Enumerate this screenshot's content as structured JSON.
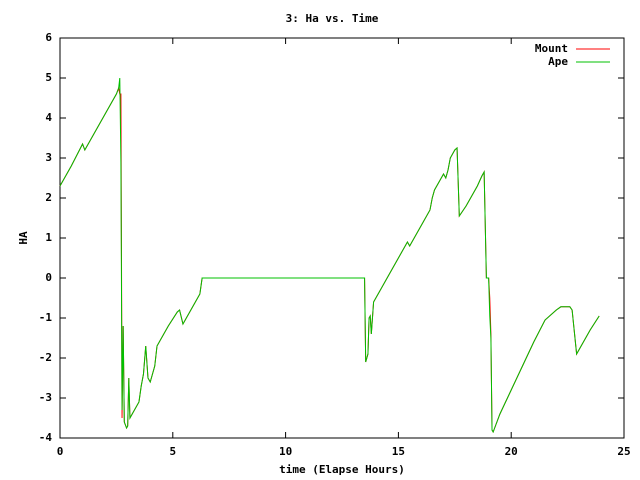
{
  "chart_data": {
    "type": "line",
    "title": "3: Ha vs. Time",
    "xlabel": "time (Elapse Hours)",
    "ylabel": "HA",
    "x": [
      0,
      0.5,
      1.0,
      1.1,
      1.5,
      2.0,
      2.5,
      2.6,
      2.65,
      2.7,
      2.75,
      2.8,
      2.85,
      2.95,
      3.0,
      3.05,
      3.1,
      3.3,
      3.5,
      3.6,
      3.7,
      3.8,
      3.9,
      4.0,
      4.2,
      4.3,
      4.5,
      4.8,
      5.2,
      5.3,
      5.45,
      5.6,
      6.0,
      6.2,
      6.3,
      13.5,
      13.55,
      13.65,
      13.7,
      13.75,
      13.8,
      13.9,
      14.1,
      14.5,
      15.0,
      15.4,
      15.5,
      16.0,
      16.4,
      16.5,
      16.6,
      17.0,
      17.1,
      17.2,
      17.3,
      17.5,
      17.6,
      17.7,
      18.0,
      18.5,
      18.7,
      18.8,
      18.9,
      19.0,
      19.05,
      19.1,
      19.15,
      19.2,
      19.5,
      20.0,
      20.5,
      21.0,
      21.5,
      22.0,
      22.2,
      22.6,
      22.7,
      22.9,
      23.0,
      23.5,
      23.9
    ],
    "series": [
      {
        "name": "Mount",
        "color": "#ff0000",
        "values": [
          2.3,
          2.8,
          3.35,
          3.2,
          3.6,
          4.1,
          4.6,
          4.75,
          4.6,
          4.6,
          -3.5,
          -1.2,
          -3.6,
          -3.75,
          -3.7,
          -2.5,
          -3.5,
          -3.3,
          -3.1,
          -2.7,
          -2.4,
          -1.7,
          -2.5,
          -2.6,
          -2.2,
          -1.7,
          -1.5,
          -1.2,
          -0.85,
          -0.8,
          -1.15,
          -1.0,
          -0.6,
          -0.4,
          0,
          0,
          -2.1,
          -1.9,
          -1.0,
          -0.95,
          -1.4,
          -0.6,
          -0.4,
          0,
          0.5,
          0.9,
          0.8,
          1.3,
          1.7,
          2.0,
          2.2,
          2.6,
          2.5,
          2.7,
          3.0,
          3.2,
          3.25,
          1.55,
          1.8,
          2.3,
          2.55,
          2.65,
          0,
          0,
          -0.5,
          -1.4,
          -3.8,
          -3.85,
          -3.4,
          -2.8,
          -2.2,
          -1.6,
          -1.05,
          -0.8,
          -0.72,
          -0.72,
          -0.8,
          -1.9,
          -1.8,
          -1.3,
          -0.95
        ]
      },
      {
        "name": "Ape",
        "color": "#00c000",
        "values": [
          2.3,
          2.8,
          3.35,
          3.2,
          3.6,
          4.1,
          4.6,
          4.75,
          5.0,
          2.9,
          -3.3,
          -1.2,
          -3.6,
          -3.75,
          -3.7,
          -2.5,
          -3.5,
          -3.3,
          -3.1,
          -2.7,
          -2.4,
          -1.7,
          -2.5,
          -2.6,
          -2.2,
          -1.7,
          -1.5,
          -1.2,
          -0.85,
          -0.8,
          -1.15,
          -1.0,
          -0.6,
          -0.4,
          0,
          0,
          -2.1,
          -1.9,
          -1.0,
          -0.95,
          -1.4,
          -0.6,
          -0.4,
          0,
          0.5,
          0.9,
          0.8,
          1.3,
          1.7,
          2.0,
          2.2,
          2.6,
          2.5,
          2.7,
          3.0,
          3.2,
          3.25,
          1.55,
          1.8,
          2.3,
          2.55,
          2.65,
          0,
          0,
          -0.95,
          -1.5,
          -3.8,
          -3.85,
          -3.4,
          -2.8,
          -2.2,
          -1.6,
          -1.05,
          -0.8,
          -0.72,
          -0.72,
          -0.8,
          -1.9,
          -1.8,
          -1.3,
          -0.95
        ]
      }
    ],
    "xlim": [
      0,
      25
    ],
    "xticks": [
      0,
      5,
      10,
      15,
      20,
      25
    ],
    "ylim": [
      -4,
      6
    ],
    "yticks": [
      -4,
      -3,
      -2,
      -1,
      0,
      1,
      2,
      3,
      4,
      5,
      6
    ],
    "legend": "top-right"
  }
}
